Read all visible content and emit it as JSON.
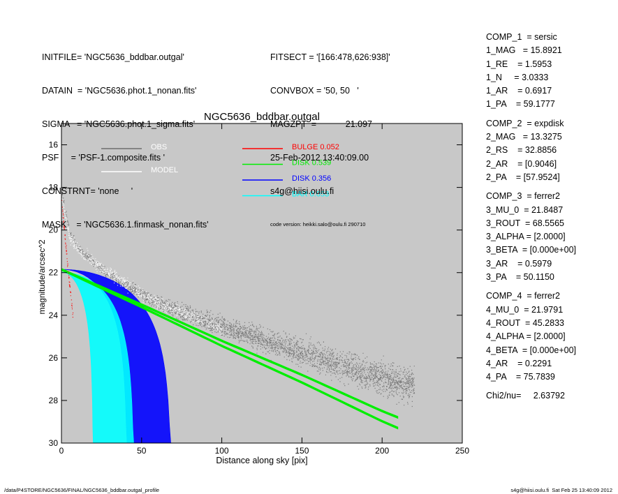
{
  "header_left": [
    "INITFILE= 'NGC5636_bddbar.outgal'",
    "DATAIN  = 'NGC5636.phot.1_nonan.fits'",
    "SIGMA   = 'NGC5636.phot.1_sigma.fits'",
    "PSF     = 'PSF-1.composite.fits '",
    "CONSTRNT= 'none     '",
    "MASK    = 'NGC5636.1.finmask_nonan.fits'"
  ],
  "header_mid": [
    "FITSECT = '[166:478,626:938]'",
    "CONVBOX = '50, 50   '",
    "MAGZPT  =            21.097",
    "25-Feb-2012 13:40:09.00",
    "s4g@hiisi.oulu.fi"
  ],
  "code_version": "code version: heikki.salo@oulu.fi 290710",
  "components": [
    {
      "rows": [
        "COMP_1  = sersic",
        "1_MAG   = 15.8921",
        "1_RE    = 1.5953",
        "1_N     = 3.0333",
        "1_AR    = 0.6917",
        "1_PA    = 59.1777"
      ]
    },
    {
      "rows": [
        "COMP_2  = expdisk",
        "2_MAG   = 13.3275",
        "2_RS    = 32.8856",
        "2_AR    = [0.9046]",
        "2_PA    = [57.9524]"
      ]
    },
    {
      "rows": [
        "COMP_3  = ferrer2",
        "3_MU_0  = 21.8487",
        "3_ROUT  = 68.5565",
        "3_ALPHA = [2.0000]",
        "3_BETA  = [0.000e+00]",
        "3_AR    = 0.5979",
        "3_PA    = 50.1150"
      ]
    },
    {
      "rows": [
        "COMP_4  = ferrer2",
        "4_MU_0  = 21.9791",
        "4_ROUT  = 45.2833",
        "4_ALPHA = [2.0000]",
        "4_BETA  = [0.000e+00]",
        "4_AR    = 0.2291",
        "4_PA    = 75.7839"
      ]
    },
    {
      "rows": [
        "Chi2/nu=     2.63792"
      ]
    }
  ],
  "footer_left": "/data/P4STORE/NGC5636/FINAL/NGC5636_bddbar.outgal_profile",
  "footer_right": "s4g@hiisi.oulu.fi  Sat Feb 25 13:40:09 2012",
  "colors": {
    "plot_bg": "#c8c8c8",
    "obs": "#6e6e6e",
    "model": "#ffffff",
    "bulge": "#ff0000",
    "disk": "#00ee00",
    "bar1": "#0000ff",
    "bar2": "#00ffff"
  },
  "chart_data": {
    "type": "scatter",
    "title": "NGC5636_bddbar.outgal",
    "xlabel": "Distance along sky [pix]",
    "ylabel": "magnitude/arcsec^2",
    "xlim": [
      0,
      250
    ],
    "ylim": [
      30,
      15
    ],
    "y_inverted": true,
    "xticks": [
      0,
      50,
      100,
      150,
      200,
      250
    ],
    "yticks": [
      16,
      18,
      20,
      22,
      24,
      26,
      28,
      30
    ],
    "grid": false,
    "legend_left": [
      {
        "name": "OBS",
        "color": "#6e6e6e"
      },
      {
        "name": "MODEL",
        "color": "#ffffff"
      }
    ],
    "legend_right": [
      {
        "name": "BULGE",
        "value": "0.052",
        "color": "#ff0000"
      },
      {
        "name": "DISK",
        "value": "0.539",
        "color": "#00ee00"
      },
      {
        "name": "DISK",
        "value": "0.356",
        "color": "#0000ff"
      },
      {
        "name": "BAR",
        "value": "0.053",
        "color": "#00ffff"
      }
    ],
    "series": [
      {
        "name": "OBS",
        "color": "#6e6e6e",
        "x": [
          0,
          5,
          10,
          15,
          20,
          30,
          40,
          50,
          60,
          70,
          80,
          100,
          120,
          140,
          160,
          180,
          200,
          220
        ],
        "y": [
          18.2,
          20.1,
          20.8,
          21.2,
          21.5,
          22.1,
          22.6,
          23.0,
          23.4,
          23.7,
          24.0,
          24.5,
          25.0,
          25.5,
          26.0,
          26.5,
          27.0,
          27.3
        ]
      },
      {
        "name": "MODEL",
        "color": "#ffffff",
        "x": [
          0,
          5,
          10,
          20,
          30,
          40,
          50,
          60,
          80,
          100
        ],
        "y": [
          18.5,
          20.3,
          20.9,
          21.5,
          22.0,
          22.5,
          23.0,
          23.4,
          24.0,
          24.6
        ]
      },
      {
        "name": "BULGE",
        "color": "#ff0000",
        "x": [
          0,
          1,
          2,
          3,
          4,
          5,
          6,
          7
        ],
        "y": [
          18.6,
          19.5,
          20.3,
          21.1,
          21.9,
          22.6,
          23.3,
          24.0
        ]
      },
      {
        "name": "DISK",
        "color": "#00ee00",
        "x": [
          0,
          50,
          100,
          150,
          200,
          210
        ],
        "y": [
          21.85,
          23.5,
          25.2,
          26.8,
          28.5,
          28.8
        ]
      },
      {
        "name": "BAR",
        "rout": 68.5565,
        "mu_0": 21.8487,
        "color": "#0000ff"
      },
      {
        "name": "BAR",
        "rout": 45.2833,
        "mu_0": 21.9791,
        "color": "#00ffff"
      }
    ]
  }
}
